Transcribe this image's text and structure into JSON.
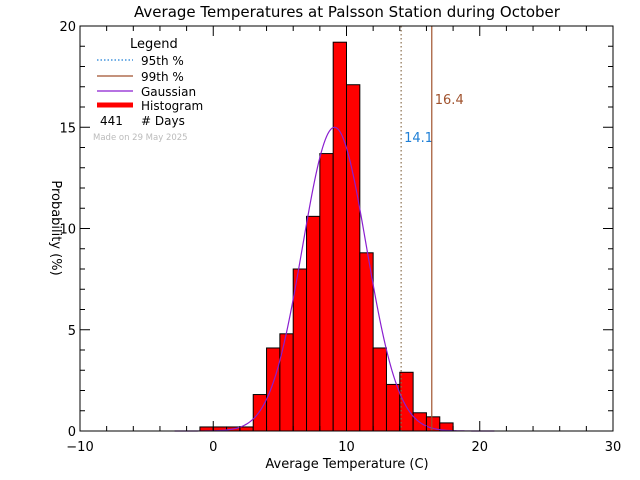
{
  "chart_data": {
    "type": "bar",
    "title": "Average Temperatures at Palsson Station during October",
    "xlabel": "Average Temperature (C)",
    "ylabel": "Probability (%)",
    "xlim": [
      -10,
      30
    ],
    "ylim": [
      0,
      20
    ],
    "x_ticks": [
      "−10",
      "0",
      "10",
      "20",
      "30"
    ],
    "y_ticks": [
      "0",
      "5",
      "10",
      "15",
      "20"
    ],
    "legend": {
      "title": "Legend",
      "placement": "top-left",
      "items": [
        {
          "label": "95th %",
          "style": "dotted",
          "color": "#1e7fd6"
        },
        {
          "label": "99th %",
          "style": "solid",
          "color": "#a0522d"
        },
        {
          "label": "Gaussian",
          "style": "solid",
          "color": "#8a1fd0"
        },
        {
          "label": "Histogram",
          "style": "thick",
          "color": "#ff0000"
        }
      ],
      "days_count": "441",
      "days_label": "# Days"
    },
    "annotation": "Made on 29 May 2025",
    "histogram": {
      "bin_width": 1,
      "bin_starts": [
        -1,
        0,
        1,
        2,
        3,
        4,
        5,
        6,
        7,
        8,
        9,
        10,
        11,
        12,
        13,
        14,
        15,
        16,
        17
      ],
      "values": [
        0.2,
        0.2,
        0.2,
        0.2,
        1.8,
        4.1,
        4.8,
        8.0,
        10.6,
        13.7,
        19.2,
        17.1,
        8.8,
        4.1,
        2.3,
        2.9,
        0.9,
        0.7,
        0.4
      ],
      "color": "#ff0000"
    },
    "gaussian": {
      "mean": 9.1,
      "sd": 2.4,
      "peak": 15.0,
      "color": "#8a1fd0"
    },
    "percentiles": [
      {
        "name": "95th %",
        "x": 14.1,
        "label": "14.1",
        "color": "#1e7fd6",
        "line_color": "#8b6f4e",
        "style": "dotted"
      },
      {
        "name": "99th %",
        "x": 16.4,
        "label": "16.4",
        "color": "#a0522d",
        "line_color": "#a0522d",
        "style": "solid"
      }
    ],
    "grid": false
  }
}
